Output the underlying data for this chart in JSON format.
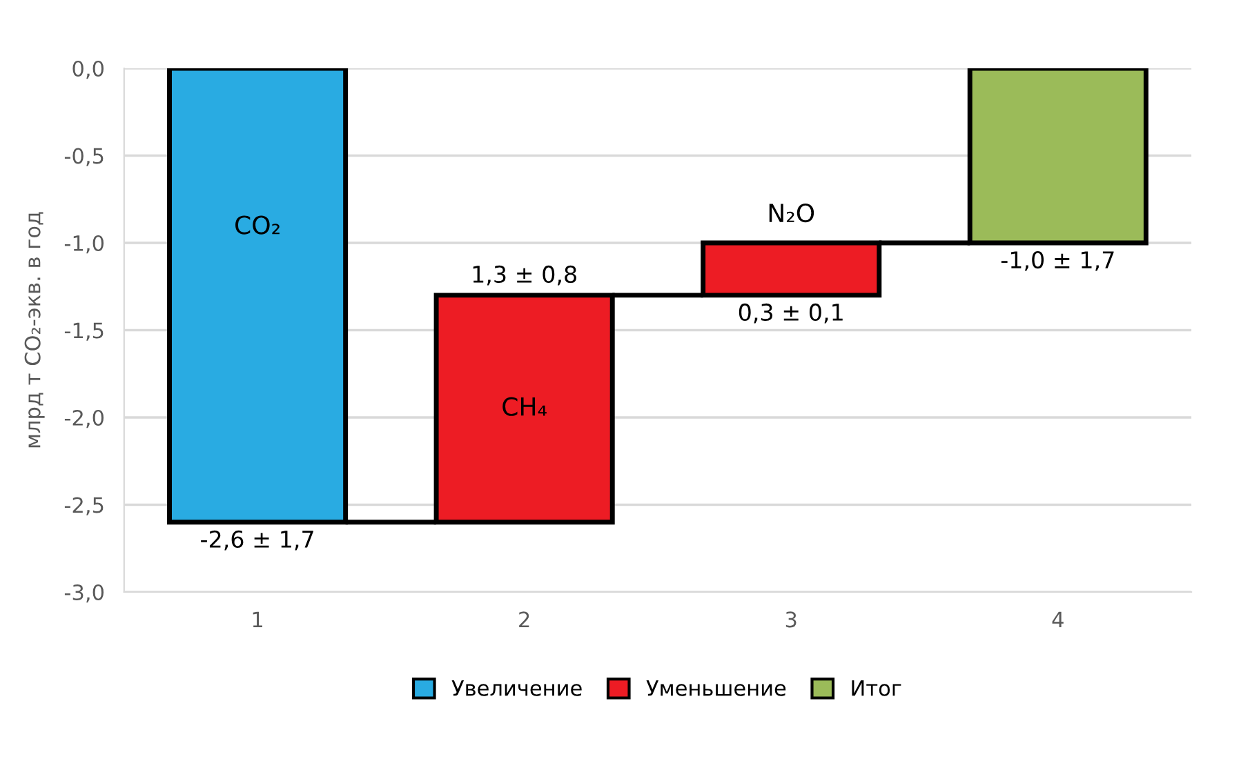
{
  "chart_data": {
    "type": "bar",
    "ylabel": "млрд т CO₂-экв. в год",
    "categories": [
      "1",
      "2",
      "3",
      "4"
    ],
    "series": [
      {
        "name": "Увеличение",
        "color": "#29abe2",
        "values": [
          -2.6,
          null,
          null,
          null
        ],
        "base": [
          0,
          null,
          null,
          null
        ],
        "value_labels": [
          "-2,6 ± 1,7",
          null,
          null,
          null
        ]
      },
      {
        "name": "Уменьшение",
        "color": "#ed1c24",
        "values": [
          null,
          1.3,
          0.3,
          null
        ],
        "base": [
          null,
          -2.6,
          -1.3,
          null
        ],
        "value_labels": [
          null,
          "1,3 ± 0,8",
          "0,3 ± 0,1",
          null
        ]
      },
      {
        "name": "Итог",
        "color": "#9bbb59",
        "values": [
          null,
          null,
          null,
          -1.0
        ],
        "base": [
          null,
          null,
          null,
          0
        ],
        "value_labels": [
          null,
          null,
          null,
          "-1,0 ± 1,7"
        ]
      }
    ],
    "ylim": [
      -3.0,
      0.0
    ],
    "yticks": [
      {
        "value": 0.0,
        "label": "0,0"
      },
      {
        "value": -0.5,
        "label": "-0,5"
      },
      {
        "value": -1.0,
        "label": "-1,0"
      },
      {
        "value": -1.5,
        "label": "-1,5"
      },
      {
        "value": -2.0,
        "label": "-2,0"
      },
      {
        "value": -2.5,
        "label": "-2,5"
      },
      {
        "value": -3.0,
        "label": "-3,0"
      }
    ],
    "annotations": [
      "CO₂",
      "CH₄",
      "N₂O"
    ],
    "grid": "y",
    "legend": "bottom"
  }
}
